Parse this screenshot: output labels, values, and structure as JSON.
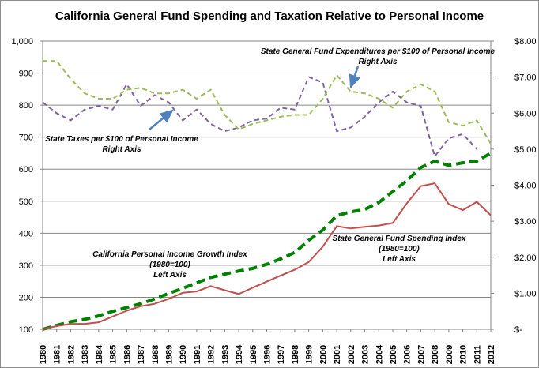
{
  "chart_data": {
    "type": "line",
    "title": "California General Fund Spending and Taxation Relative to Personal Income",
    "categories": [
      "1980",
      "1981",
      "1982",
      "1983",
      "1984",
      "1985",
      "1986",
      "1987",
      "1988",
      "1989",
      "1990",
      "1991",
      "1992",
      "1993",
      "1994",
      "1995",
      "1996",
      "1997",
      "1998",
      "1999",
      "2000",
      "2001",
      "2002",
      "2003",
      "2004",
      "2005",
      "2006",
      "2007",
      "2008",
      "2009",
      "2010",
      "2011",
      "2012"
    ],
    "left_axis": {
      "ylim": [
        100,
        1000
      ],
      "ticks": [
        "100",
        "200",
        "300",
        "400",
        "500",
        "600",
        "700",
        "800",
        "900",
        "1,000"
      ]
    },
    "right_axis": {
      "ylim": [
        0,
        8
      ],
      "ticks": [
        "$-",
        "$1.00",
        "$2.00",
        "$3.00",
        "$4.00",
        "$5.00",
        "$6.00",
        "$7.00",
        "$8.00"
      ]
    },
    "grid": true,
    "legend": "none",
    "series": [
      {
        "axis": "left",
        "style": "dashed-thick",
        "color": "#008000",
        "values": [
          100,
          112,
          124,
          131,
          142,
          156,
          168,
          180,
          195,
          212,
          228,
          245,
          262,
          272,
          282,
          290,
          303,
          320,
          340,
          378,
          410,
          455,
          467,
          474,
          496,
          530,
          564,
          605,
          625,
          612,
          620,
          625,
          650
        ]
      },
      {
        "axis": "left",
        "style": "solid",
        "color": "#c0504d",
        "values": [
          100,
          110,
          117,
          117,
          122,
          140,
          158,
          172,
          180,
          195,
          214,
          218,
          235,
          222,
          210,
          230,
          249,
          268,
          286,
          310,
          358,
          422,
          415,
          420,
          424,
          432,
          493,
          547,
          556,
          491,
          472,
          498,
          456
        ]
      },
      {
        "axis": "right",
        "style": "dashed",
        "color": "#8064a2",
        "values": [
          6.3,
          6.0,
          5.8,
          6.1,
          6.2,
          6.1,
          6.8,
          6.2,
          6.5,
          6.3,
          5.8,
          6.1,
          5.7,
          5.5,
          5.6,
          5.8,
          5.85,
          6.15,
          6.1,
          7.0,
          6.85,
          5.5,
          5.6,
          5.9,
          6.3,
          6.6,
          6.3,
          6.2,
          4.8,
          5.3,
          5.42,
          5.0,
          null
        ]
      },
      {
        "axis": "right",
        "style": "dashed",
        "color": "#9bbb59",
        "values": [
          7.45,
          7.45,
          6.95,
          6.55,
          6.4,
          6.4,
          6.65,
          6.7,
          6.55,
          6.55,
          6.65,
          6.4,
          6.65,
          5.95,
          5.55,
          5.7,
          5.8,
          5.9,
          5.95,
          5.95,
          6.4,
          7.05,
          6.6,
          6.55,
          6.4,
          6.15,
          6.6,
          6.8,
          6.6,
          5.75,
          5.65,
          5.8,
          5.15
        ]
      }
    ],
    "annotations": [
      {
        "key": "expend",
        "lines": [
          "State General Fund Expenditures per $100 of Personal Income",
          "Right Axis"
        ]
      },
      {
        "key": "taxes",
        "lines": [
          "State Taxes per $100 of Personal Income",
          "Right Axis"
        ]
      },
      {
        "key": "income",
        "lines": [
          "California Personal Income Growth Index",
          "(1980=100)",
          "Left Axis"
        ]
      },
      {
        "key": "spending",
        "lines": [
          "State General Fund Spending Index",
          "(1980=100)",
          "Left Axis"
        ]
      }
    ]
  }
}
